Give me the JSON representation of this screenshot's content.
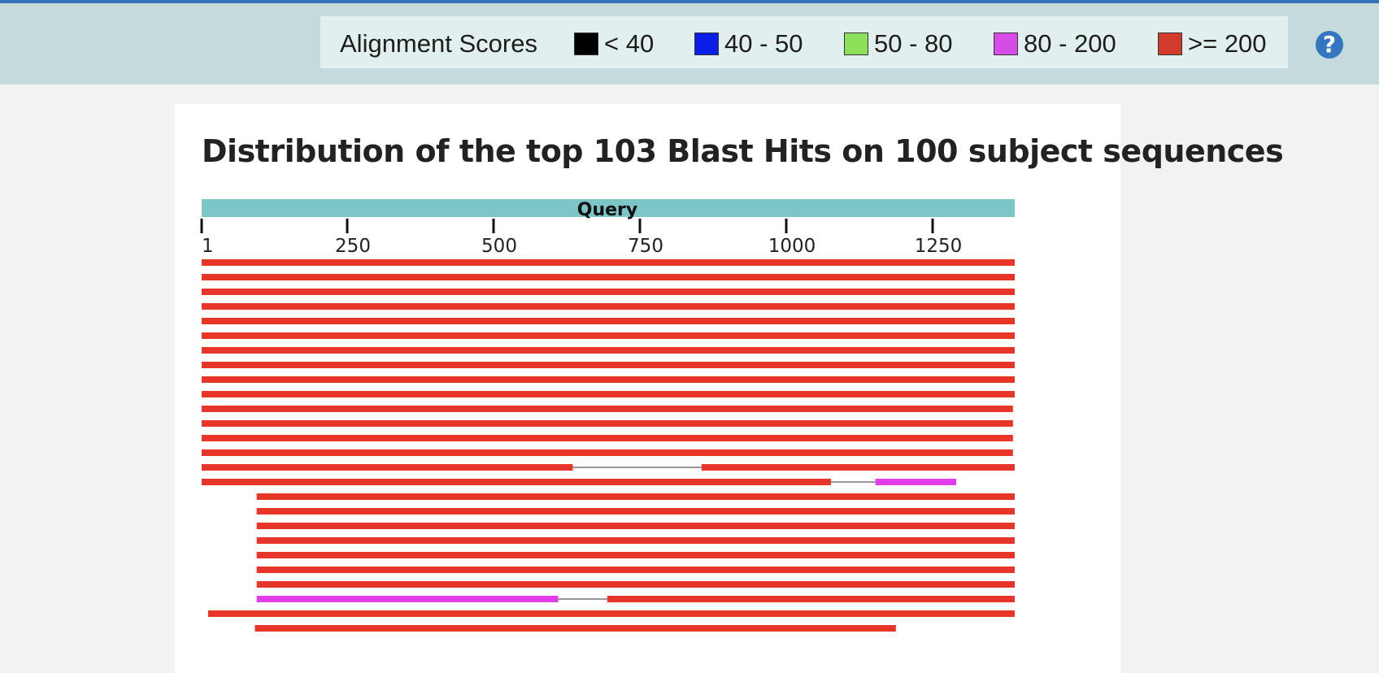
{
  "legend": {
    "title": "Alignment Scores",
    "items": [
      {
        "label": "< 40",
        "color": "#000000"
      },
      {
        "label": "40 - 50",
        "color": "#0a1ee6"
      },
      {
        "label": "50 - 80",
        "color": "#8ce05a"
      },
      {
        "label": "80 - 200",
        "color": "#d64ce6"
      },
      {
        "label": ">= 200",
        "color": "#d23a2a"
      }
    ]
  },
  "help": {
    "label": "?"
  },
  "panel": {
    "title": "Distribution of the top 103 Blast Hits on 100 subject sequences"
  },
  "query": {
    "label": "Query",
    "length": 1390,
    "ticks": [
      1,
      250,
      500,
      750,
      1000,
      1250
    ]
  },
  "colors": {
    "query_bar": "#7cc6c8",
    "hit_high": "#e8352a",
    "hit_mid": "#e33de9",
    "gap_line": "#777777"
  },
  "hits": [
    {
      "segments": [
        {
          "start": 1,
          "end": 1390,
          "score": "200+"
        }
      ]
    },
    {
      "segments": [
        {
          "start": 1,
          "end": 1390,
          "score": "200+"
        }
      ]
    },
    {
      "segments": [
        {
          "start": 1,
          "end": 1390,
          "score": "200+"
        }
      ]
    },
    {
      "segments": [
        {
          "start": 1,
          "end": 1390,
          "score": "200+"
        }
      ]
    },
    {
      "segments": [
        {
          "start": 1,
          "end": 1390,
          "score": "200+"
        }
      ]
    },
    {
      "segments": [
        {
          "start": 1,
          "end": 1390,
          "score": "200+"
        }
      ]
    },
    {
      "segments": [
        {
          "start": 1,
          "end": 1390,
          "score": "200+"
        }
      ]
    },
    {
      "segments": [
        {
          "start": 1,
          "end": 1390,
          "score": "200+"
        }
      ]
    },
    {
      "segments": [
        {
          "start": 1,
          "end": 1390,
          "score": "200+"
        }
      ]
    },
    {
      "segments": [
        {
          "start": 1,
          "end": 1390,
          "score": "200+"
        }
      ]
    },
    {
      "segments": [
        {
          "start": 1,
          "end": 1387,
          "score": "200+"
        }
      ]
    },
    {
      "segments": [
        {
          "start": 1,
          "end": 1387,
          "score": "200+"
        }
      ]
    },
    {
      "segments": [
        {
          "start": 1,
          "end": 1387,
          "score": "200+"
        }
      ]
    },
    {
      "segments": [
        {
          "start": 1,
          "end": 1387,
          "score": "200+"
        }
      ]
    },
    {
      "segments": [
        {
          "start": 1,
          "end": 635,
          "score": "200+"
        },
        {
          "start": 855,
          "end": 1390,
          "score": "200+"
        }
      ]
    },
    {
      "segments": [
        {
          "start": 1,
          "end": 1076,
          "score": "200+"
        },
        {
          "start": 1152,
          "end": 1290,
          "score": "80-200"
        }
      ]
    },
    {
      "segments": [
        {
          "start": 95,
          "end": 1390,
          "score": "200+"
        }
      ]
    },
    {
      "segments": [
        {
          "start": 95,
          "end": 1390,
          "score": "200+"
        }
      ]
    },
    {
      "segments": [
        {
          "start": 95,
          "end": 1390,
          "score": "200+"
        }
      ]
    },
    {
      "segments": [
        {
          "start": 95,
          "end": 1390,
          "score": "200+"
        }
      ]
    },
    {
      "segments": [
        {
          "start": 95,
          "end": 1390,
          "score": "200+"
        }
      ]
    },
    {
      "segments": [
        {
          "start": 95,
          "end": 1390,
          "score": "200+"
        }
      ]
    },
    {
      "segments": [
        {
          "start": 95,
          "end": 1390,
          "score": "200+"
        }
      ]
    },
    {
      "segments": [
        {
          "start": 95,
          "end": 610,
          "score": "80-200"
        },
        {
          "start": 694,
          "end": 1390,
          "score": "200+"
        }
      ]
    },
    {
      "segments": [
        {
          "start": 12,
          "end": 1390,
          "score": "200+"
        }
      ]
    },
    {
      "segments": [
        {
          "start": 92,
          "end": 1187,
          "score": "200+"
        }
      ]
    }
  ]
}
